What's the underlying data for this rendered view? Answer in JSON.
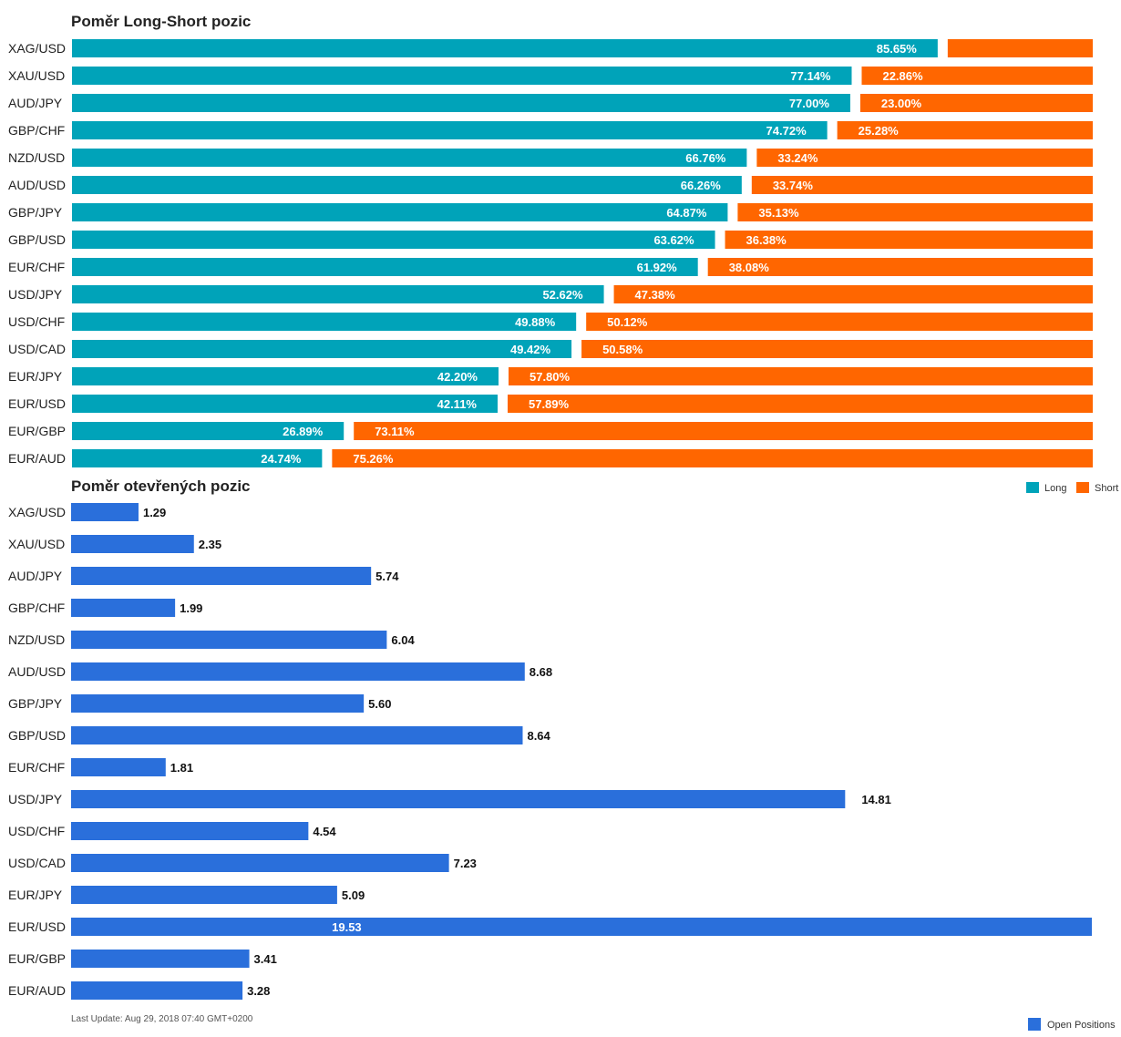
{
  "chart_data": [
    {
      "type": "bar",
      "orientation": "horizontal",
      "stacked": true,
      "title": "Poměr Long-Short pozic",
      "categories": [
        "XAG/USD",
        "XAU/USD",
        "AUD/JPY",
        "GBP/CHF",
        "NZD/USD",
        "AUD/USD",
        "GBP/JPY",
        "GBP/USD",
        "EUR/CHF",
        "USD/JPY",
        "USD/CHF",
        "USD/CAD",
        "EUR/JPY",
        "EUR/USD",
        "EUR/GBP",
        "EUR/AUD"
      ],
      "series": [
        {
          "name": "Long",
          "color": "#00a3b9",
          "values": [
            85.65,
            77.14,
            77.0,
            74.72,
            66.76,
            66.26,
            64.87,
            63.62,
            61.92,
            52.62,
            49.88,
            49.42,
            42.2,
            42.11,
            26.89,
            24.74
          ],
          "labels": [
            "85.65%",
            "77.14%",
            "77.00%",
            "74.72%",
            "66.76%",
            "66.26%",
            "64.87%",
            "63.62%",
            "61.92%",
            "52.62%",
            "49.88%",
            "49.42%",
            "42.20%",
            "42.11%",
            "26.89%",
            "24.74%"
          ]
        },
        {
          "name": "Short",
          "color": "#ff6600",
          "values": [
            14.35,
            22.86,
            23.0,
            25.28,
            33.24,
            33.74,
            35.13,
            36.38,
            38.08,
            47.38,
            50.12,
            50.58,
            57.8,
            57.89,
            73.11,
            75.26
          ],
          "labels": [
            "",
            "22.86%",
            "23.00%",
            "25.28%",
            "33.24%",
            "33.74%",
            "35.13%",
            "36.38%",
            "38.08%",
            "47.38%",
            "50.12%",
            "50.58%",
            "57.80%",
            "57.89%",
            "73.11%",
            "75.26%"
          ]
        }
      ],
      "xlim": [
        0,
        100
      ],
      "grid": false,
      "legend": "bottom-right"
    },
    {
      "type": "bar",
      "orientation": "horizontal",
      "title": "Poměr otevřených pozic",
      "categories": [
        "XAG/USD",
        "XAU/USD",
        "AUD/JPY",
        "GBP/CHF",
        "NZD/USD",
        "AUD/USD",
        "GBP/JPY",
        "GBP/USD",
        "EUR/CHF",
        "USD/JPY",
        "USD/CHF",
        "USD/CAD",
        "EUR/JPY",
        "EUR/USD",
        "EUR/GBP",
        "EUR/AUD"
      ],
      "series": [
        {
          "name": "Open Positions",
          "color": "#2a6fdb",
          "values": [
            1.29,
            2.35,
            5.74,
            1.99,
            6.04,
            8.68,
            5.6,
            8.64,
            1.81,
            14.81,
            4.54,
            7.23,
            5.09,
            19.53,
            3.41,
            3.28
          ],
          "labels": [
            "1.29",
            "2.35",
            "5.74",
            "1.99",
            "6.04",
            "8.68",
            "5.60",
            "8.64",
            "1.81",
            "14.81",
            "4.54",
            "7.23",
            "5.09",
            "19.53",
            "3.41",
            "3.28"
          ]
        }
      ],
      "xlim": [
        0,
        19.53
      ],
      "grid": false,
      "legend": "bottom-right"
    }
  ],
  "footer": {
    "last_update": "Last Update: Aug 29, 2018 07:40 GMT+0200"
  }
}
